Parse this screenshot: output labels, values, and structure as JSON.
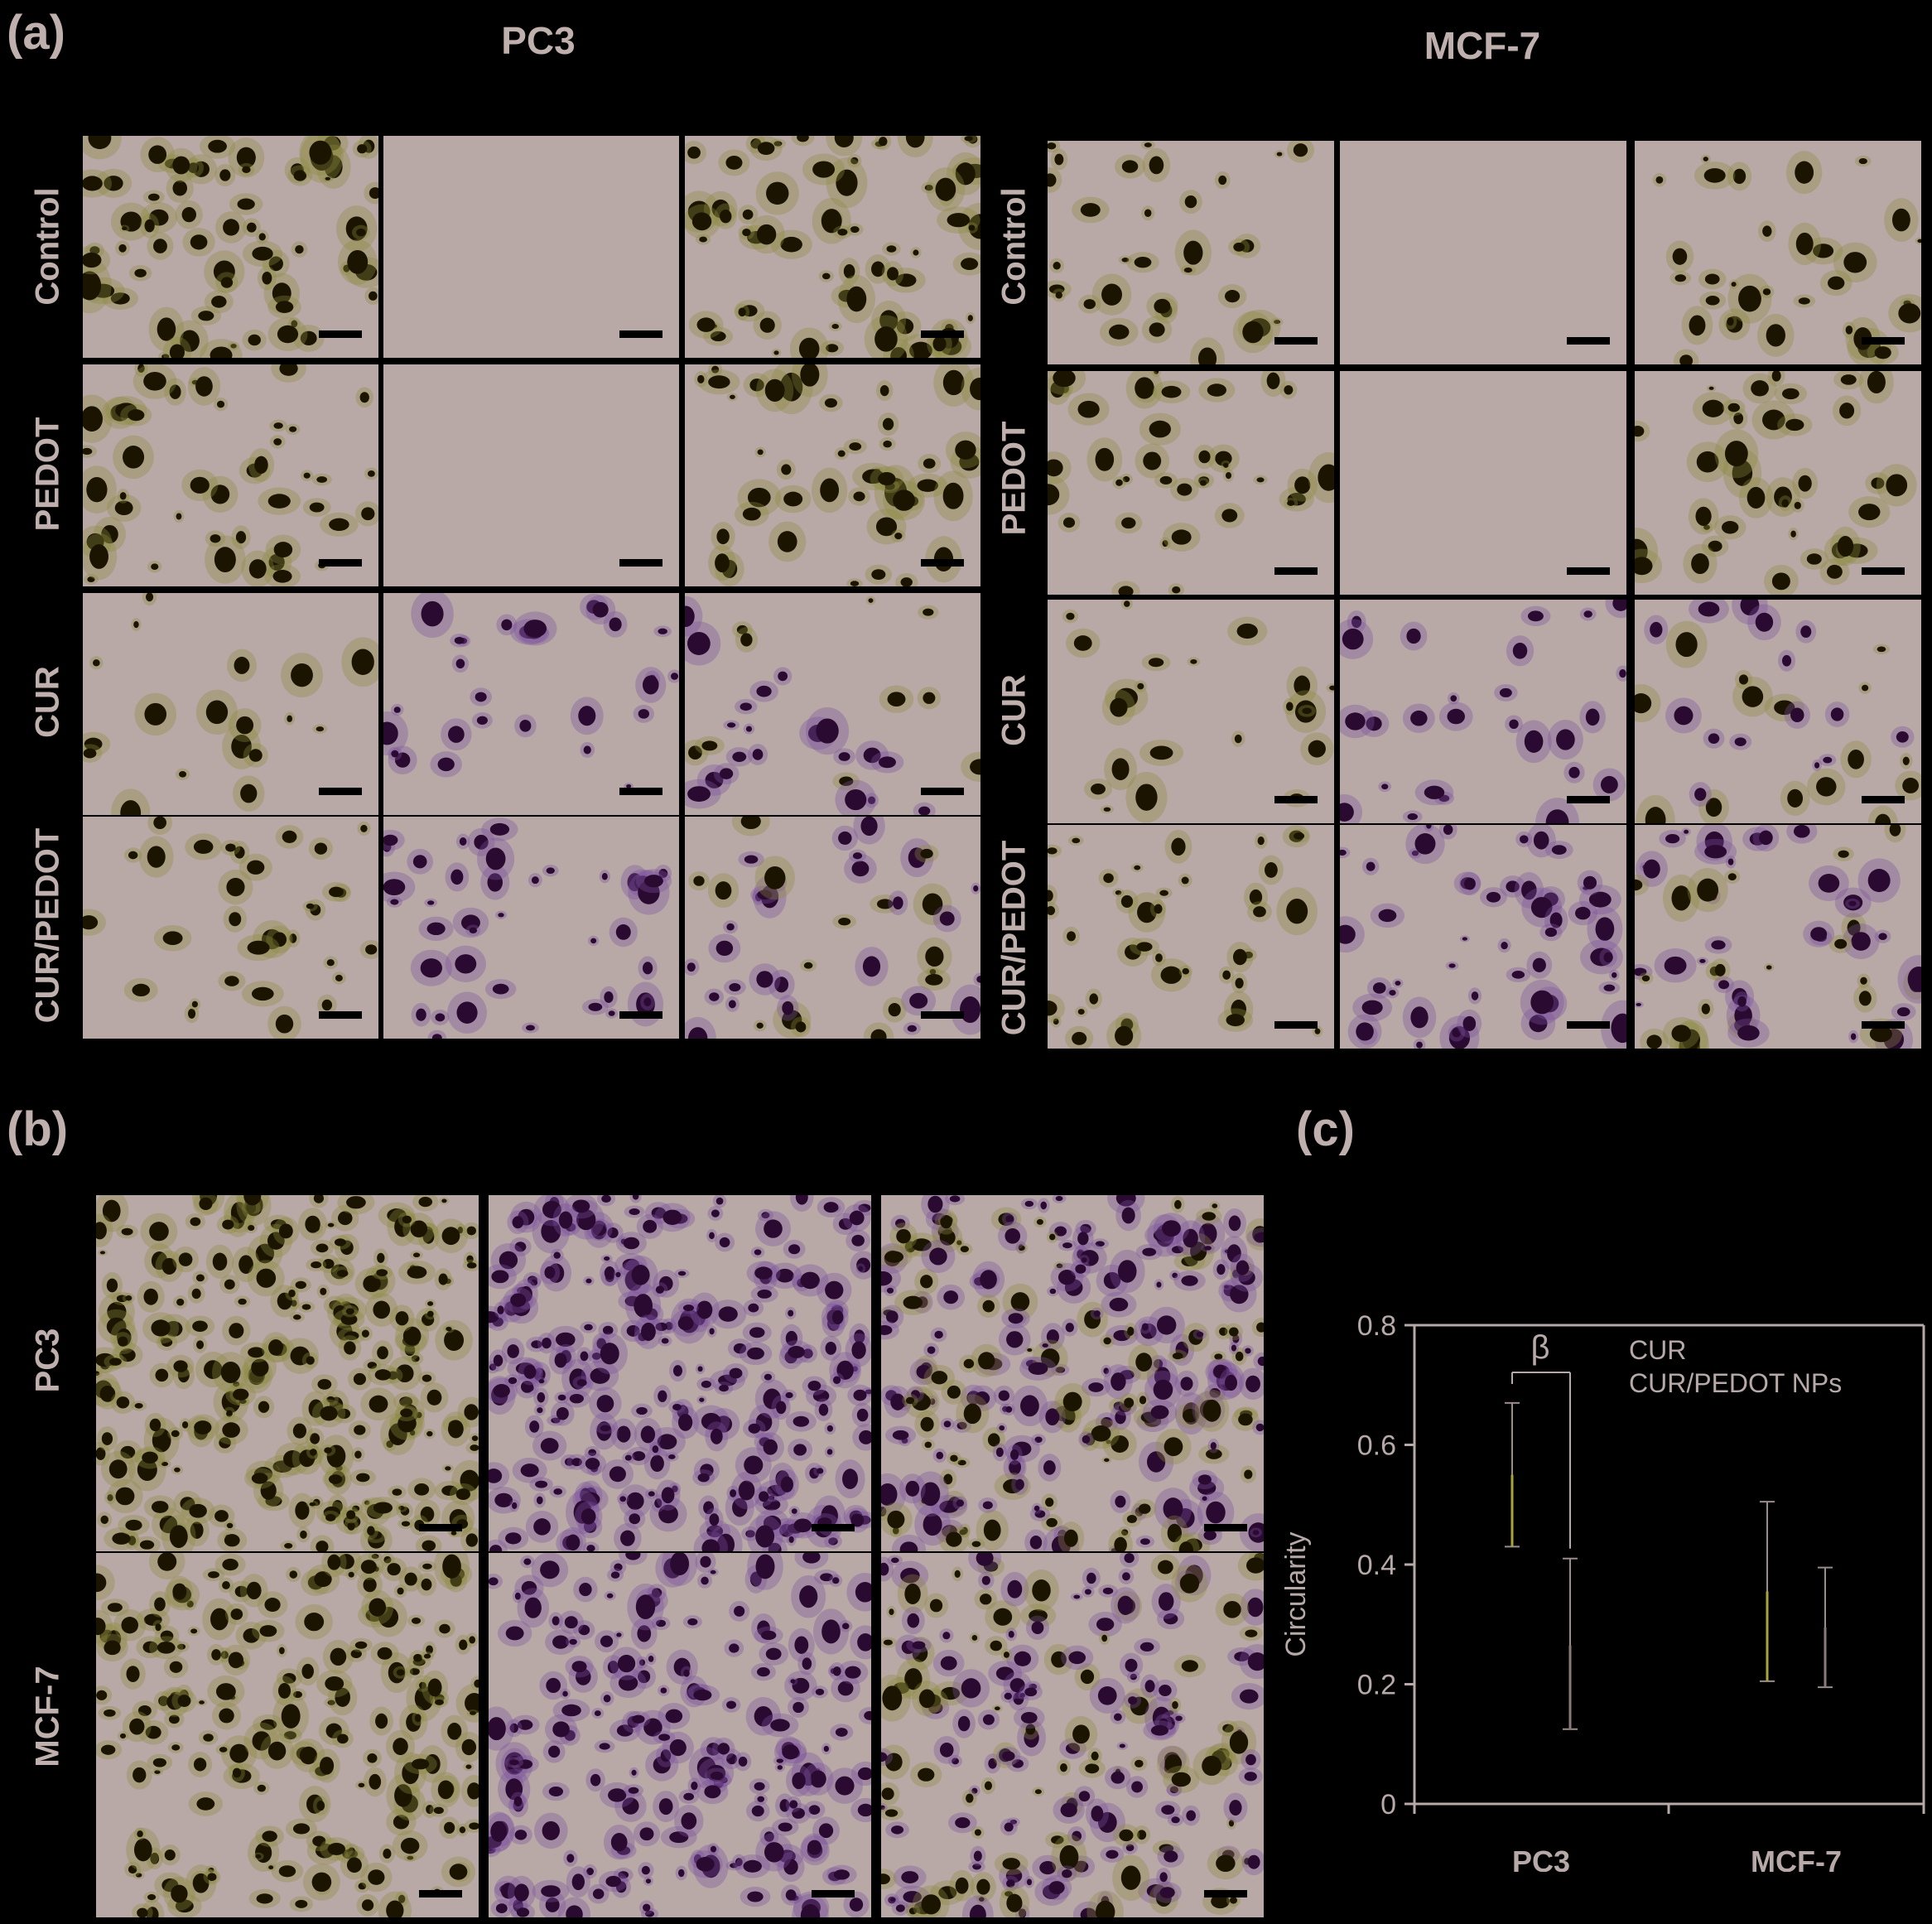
{
  "panels": {
    "a": "(a)",
    "b": "(b)",
    "c": "(c)"
  },
  "panel_a": {
    "columns": [
      "PC3",
      "MCF-7"
    ],
    "rows": [
      "Control",
      "PEDOT",
      "CUR",
      "CUR/PEDOT"
    ]
  },
  "panel_b": {
    "rows": [
      "PC3",
      "MCF-7"
    ]
  },
  "colors": {
    "background": "#000000",
    "tile": "#b8a9a7",
    "cell_yellow": "#1a1400",
    "cell_purple": "#2a0a30",
    "halo_yellow": "#8c8a40",
    "halo_purple": "#7a4f9e",
    "cur_series": "#a8a43c",
    "nps_series": "#8a7a78"
  },
  "chart_data": {
    "type": "scatter",
    "xlabel": "",
    "ylabel": "Circularity",
    "categories": [
      "PC3",
      "MCF-7"
    ],
    "ylim": [
      0,
      0.8
    ],
    "yticks": [
      "0",
      "0.2",
      "0.4",
      "0.6",
      "0.8"
    ],
    "legend": [
      "CUR",
      "CUR/PEDOT NPs"
    ],
    "legend_position": "top-right",
    "annotation": "β",
    "series": [
      {
        "name": "CUR",
        "values": [
          0.55,
          0.355
        ],
        "error_low": [
          0.43,
          0.205
        ],
        "error_high": [
          0.67,
          0.505
        ]
      },
      {
        "name": "CUR/PEDOT NPs",
        "values": [
          0.265,
          0.295
        ],
        "error_low": [
          0.125,
          0.195
        ],
        "error_high": [
          0.41,
          0.395
        ]
      }
    ]
  }
}
